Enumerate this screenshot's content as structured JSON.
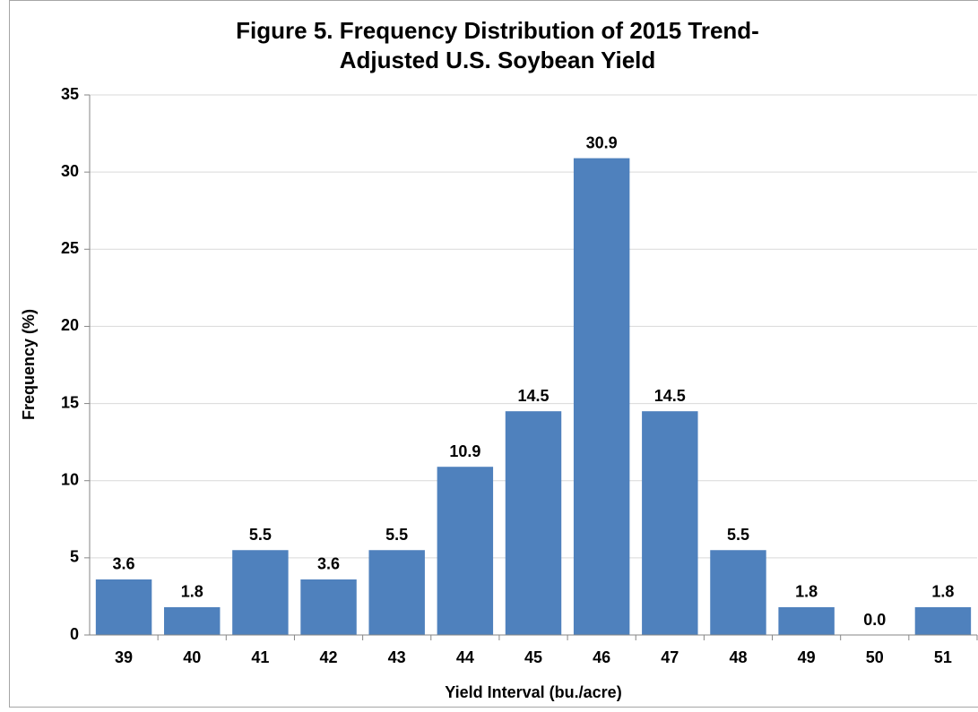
{
  "chart_data": {
    "type": "bar",
    "title": "Figure 5. Frequency Distribution of 2015 Trend-Adjusted U.S. Soybean Yield",
    "x_label": "Yield Interval (bu./acre)",
    "y_label": "Frequency (%)",
    "categories": [
      "39",
      "40",
      "41",
      "42",
      "43",
      "44",
      "45",
      "46",
      "47",
      "48",
      "49",
      "50",
      "51"
    ],
    "values": [
      3.6,
      1.8,
      5.5,
      3.6,
      5.5,
      10.9,
      14.5,
      30.9,
      14.5,
      5.5,
      1.8,
      0,
      1.8
    ],
    "value_labels": [
      "3.6",
      "1.8",
      "5.5",
      "3.6",
      "5.5",
      "10.9",
      "14.5",
      "30.9",
      "14.5",
      "5.5",
      "1.8",
      "0.0",
      "1.8"
    ],
    "color": "#4f81bd",
    "ylim": [
      0,
      35
    ],
    "yticks": [
      0,
      5,
      10,
      15,
      20,
      25,
      30,
      35
    ],
    "grid": true
  }
}
